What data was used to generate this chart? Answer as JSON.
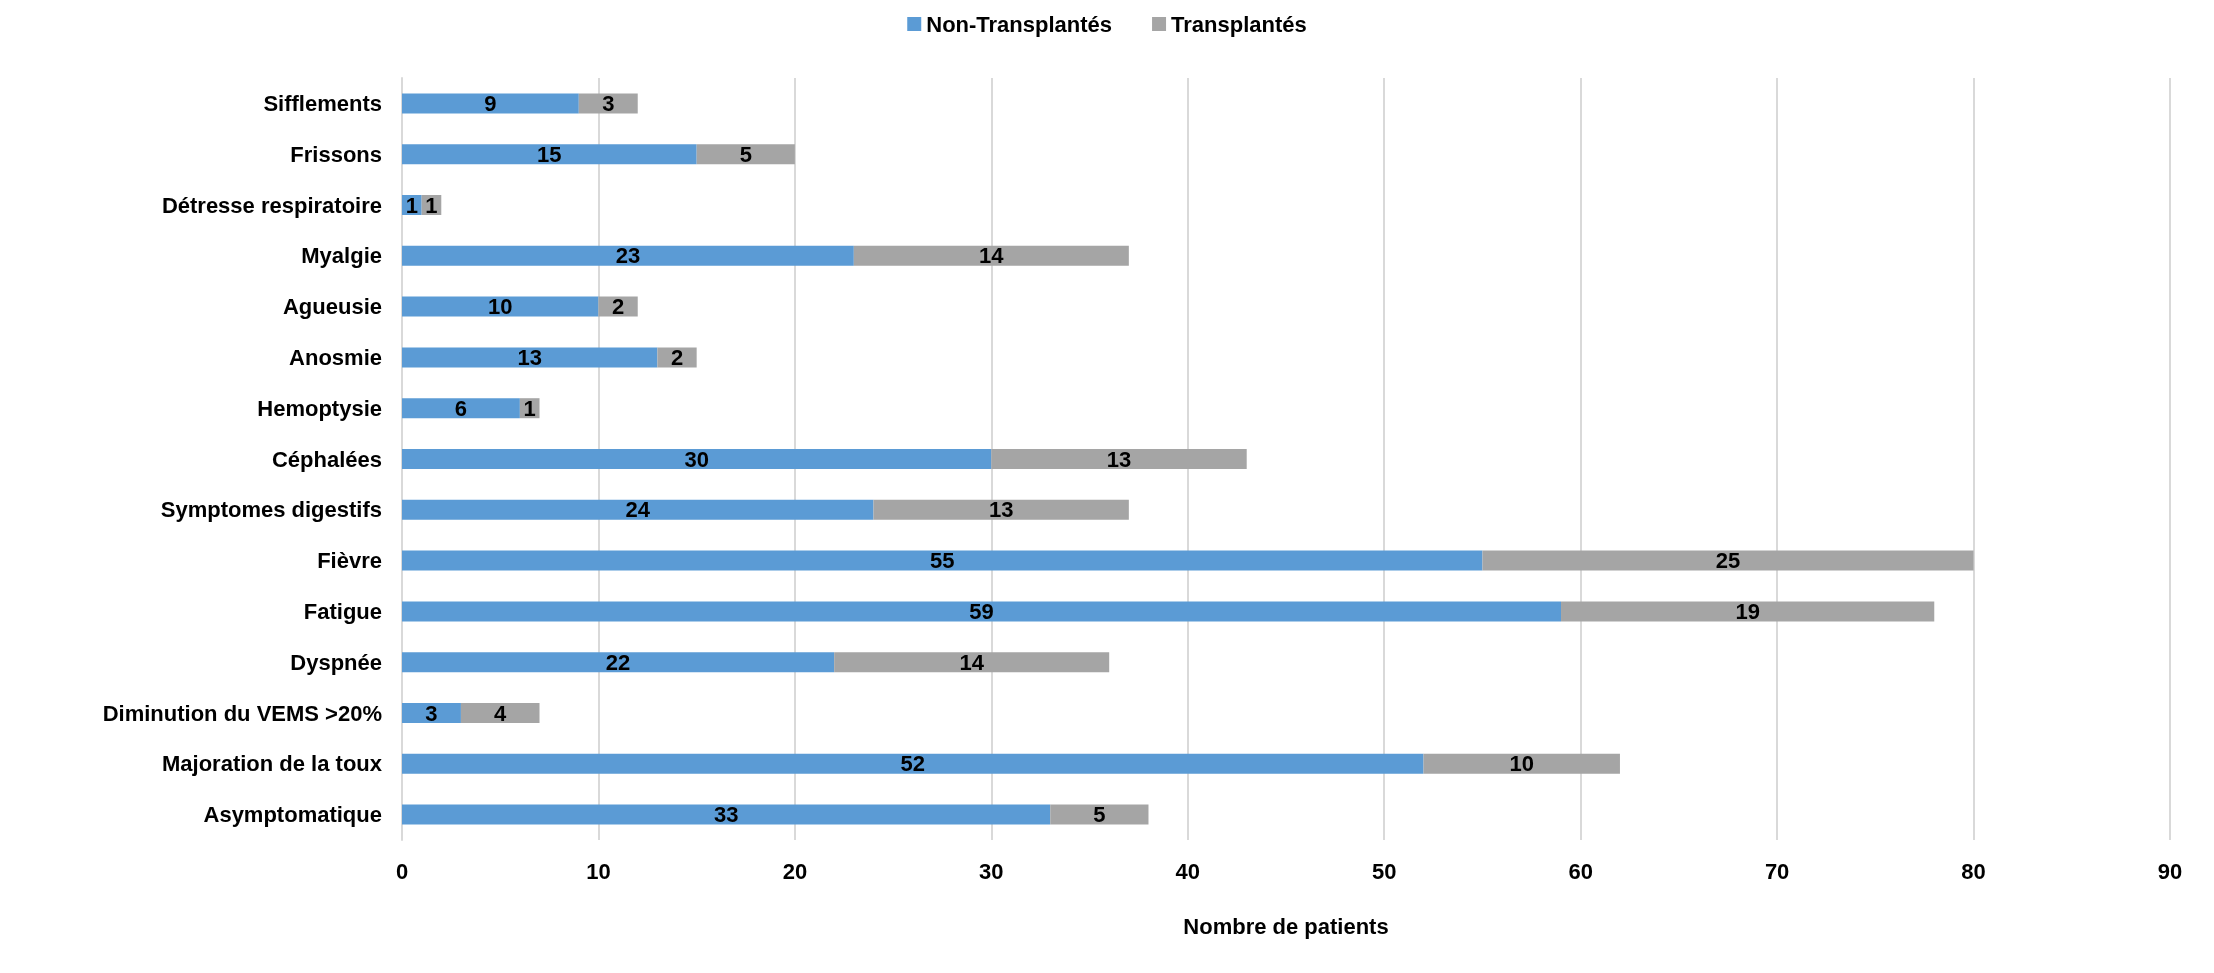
{
  "chart_data": {
    "type": "bar",
    "orientation": "horizontal",
    "stacked": true,
    "xlabel": "Nombre de patients",
    "categories": [
      "Sifflements",
      "Frissons",
      "Détresse respiratoire",
      "Myalgie",
      "Agueusie",
      "Anosmie",
      "Hemoptysie",
      "Céphalées",
      "Symptomes digestifs",
      "Fièvre",
      "Fatigue",
      "Dyspnée",
      "Diminution du VEMS >20%",
      "Majoration de la toux",
      "Asymptomatique"
    ],
    "series": [
      {
        "name": "Non-Transplantés",
        "color": "#5b9bd5",
        "values": [
          9,
          15,
          1,
          23,
          10,
          13,
          6,
          30,
          24,
          55,
          59,
          22,
          3,
          52,
          33
        ]
      },
      {
        "name": "Transplantés",
        "color": "#a5a5a5",
        "values": [
          3,
          5,
          1,
          14,
          2,
          2,
          1,
          13,
          13,
          25,
          19,
          14,
          4,
          10,
          5
        ]
      }
    ],
    "xlim": [
      0,
      90
    ],
    "xticks": [
      0,
      10,
      20,
      30,
      40,
      50,
      60,
      70,
      80,
      90
    ],
    "grid": "x",
    "legend": "top",
    "data_labels": true
  }
}
